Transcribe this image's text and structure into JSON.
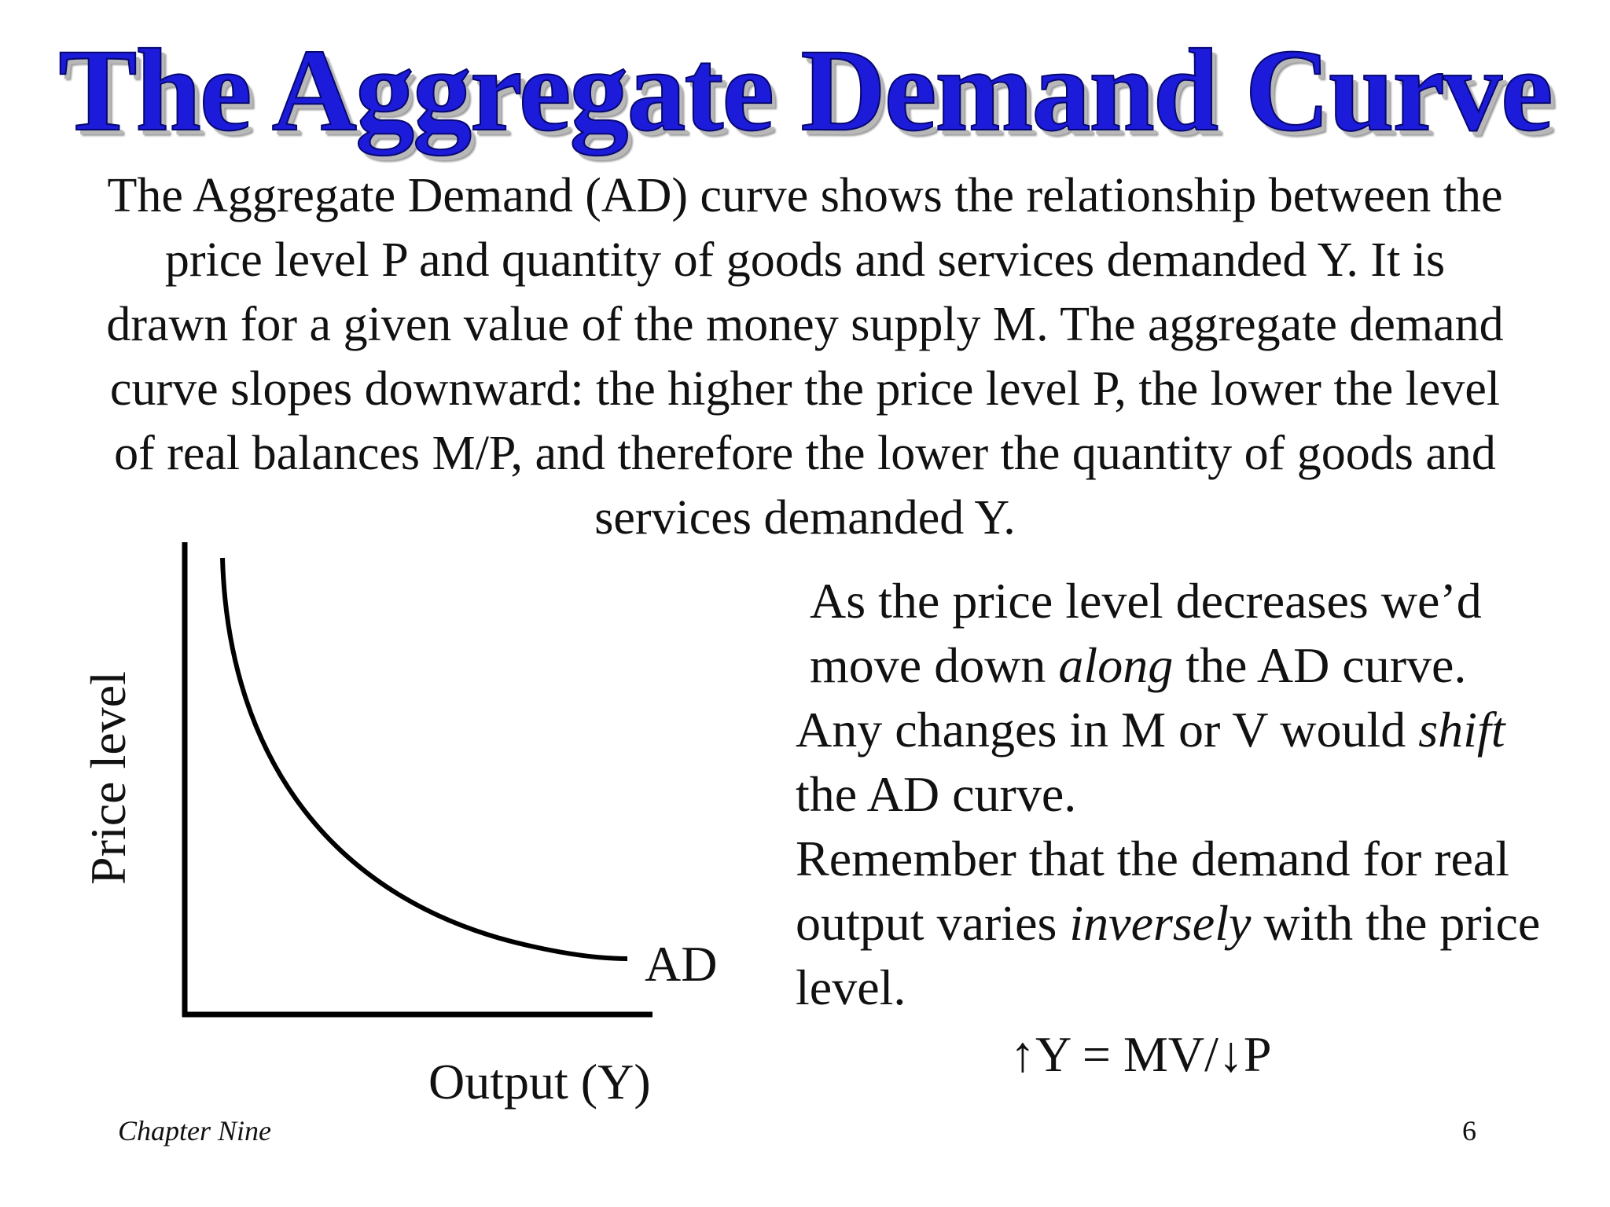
{
  "title": "The Aggregate Demand Curve",
  "intro_lines": [
    "The Aggregate Demand (AD) curve shows the relationship between the",
    "price level P and quantity of goods and services demanded Y.  It is",
    "drawn for a given value of the money supply M. The aggregate demand",
    "curve slopes downward: the higher the price level P, the lower the level",
    "of real balances M/P, and therefore the lower the quantity of goods and",
    "services demanded Y."
  ],
  "chart": {
    "y_label": "Price level",
    "x_label": "Output (Y)",
    "curve_label": "AD"
  },
  "explanation": {
    "line1": "As the price level decreases we’d",
    "line2_pre": "move down ",
    "line2_em": "along",
    "line2_post": " the AD curve.",
    "line3_pre": "Any changes in M or V would ",
    "line3_em": "shift",
    "line4": "the AD curve.",
    "line5": "Remember that the demand for real",
    "line6_pre": "output varies ",
    "line6_em": "inversely",
    "line6_post": " with the price",
    "line7": "level."
  },
  "equation": "↑Y = MV/↓P",
  "footer": {
    "chapter": "Chapter Nine",
    "page": "6"
  }
}
